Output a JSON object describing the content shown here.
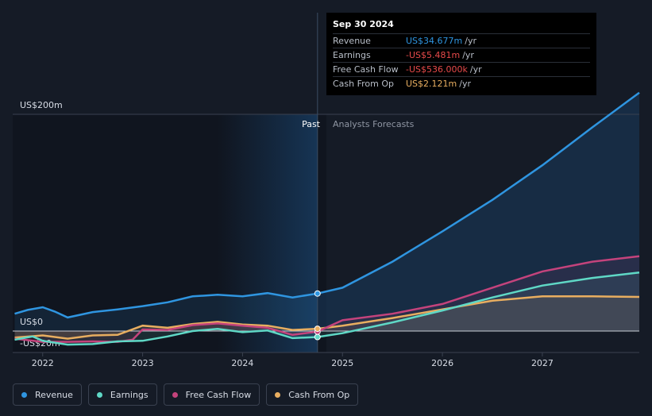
{
  "colors": {
    "revenue": "#2f95e0",
    "earnings": "#5fd8c6",
    "fcf": "#c4437c",
    "cfo": "#e8ae60",
    "negative": "#e84a4a"
  },
  "tooltip": {
    "date": "Sep 30 2024",
    "rows": [
      {
        "label": "Revenue",
        "value": "US$34.677m",
        "unit": "/yr",
        "color": "#2f95e0"
      },
      {
        "label": "Earnings",
        "value": "-US$5.481m",
        "unit": "/yr",
        "color": "#e84a4a"
      },
      {
        "label": "Free Cash Flow",
        "value": "-US$536.000k",
        "unit": "/yr",
        "color": "#e84a4a"
      },
      {
        "label": "Cash From Op",
        "value": "US$2.121m",
        "unit": "/yr",
        "color": "#e8ae60"
      }
    ]
  },
  "legend": [
    {
      "label": "Revenue",
      "color": "#2f95e0",
      "icon": "revenue-dot-icon"
    },
    {
      "label": "Earnings",
      "color": "#5fd8c6",
      "icon": "earnings-dot-icon"
    },
    {
      "label": "Free Cash Flow",
      "color": "#c4437c",
      "icon": "fcf-dot-icon"
    },
    {
      "label": "Cash From Op",
      "color": "#e8ae60",
      "icon": "cfo-dot-icon"
    }
  ],
  "chart_data": {
    "type": "line",
    "y_labels": {
      "top": "US$200m",
      "zero": "US$0",
      "bottom": "-US$20m"
    },
    "ylim": [
      -20,
      200
    ],
    "xlim": [
      2021.7,
      2027.97
    ],
    "x_ticks": [
      "2022",
      "2023",
      "2024",
      "2025",
      "2026",
      "2027"
    ],
    "x_tick_values": [
      2022,
      2023,
      2024,
      2025,
      2026,
      2027
    ],
    "past_label": "Past",
    "forecast_label": "Analysts Forecasts",
    "split_x": 2024.75,
    "highlight_start_x": 2023.75,
    "legend_position": "bottom-left",
    "series": [
      {
        "name": "Revenue",
        "key": "revenue",
        "points": [
          [
            2021.72,
            16
          ],
          [
            2021.85,
            19.5
          ],
          [
            2022.0,
            22
          ],
          [
            2022.12,
            18
          ],
          [
            2022.25,
            12.5
          ],
          [
            2022.5,
            17.5
          ],
          [
            2022.75,
            20
          ],
          [
            2023.0,
            23
          ],
          [
            2023.25,
            26.5
          ],
          [
            2023.5,
            32
          ],
          [
            2023.75,
            33.5
          ],
          [
            2024.0,
            32
          ],
          [
            2024.25,
            35
          ],
          [
            2024.5,
            31
          ],
          [
            2024.75,
            34.677
          ]
        ],
        "forecast": [
          [
            2024.75,
            34.677
          ],
          [
            2025.0,
            40
          ],
          [
            2025.5,
            64
          ],
          [
            2026.0,
            92
          ],
          [
            2026.5,
            121
          ],
          [
            2027.0,
            153
          ],
          [
            2027.5,
            188
          ],
          [
            2027.97,
            220
          ]
        ]
      },
      {
        "name": "Earnings",
        "key": "earnings",
        "points": [
          [
            2021.72,
            -8
          ],
          [
            2021.9,
            -5
          ],
          [
            2022.0,
            -9
          ],
          [
            2022.25,
            -12.5
          ],
          [
            2022.5,
            -12
          ],
          [
            2022.75,
            -9.5
          ],
          [
            2023.0,
            -9
          ],
          [
            2023.25,
            -5
          ],
          [
            2023.5,
            0
          ],
          [
            2023.75,
            2
          ],
          [
            2024.0,
            -1
          ],
          [
            2024.25,
            0.5
          ],
          [
            2024.5,
            -6.5
          ],
          [
            2024.75,
            -5.481
          ]
        ],
        "forecast": [
          [
            2024.75,
            -5.481
          ],
          [
            2025.0,
            -2
          ],
          [
            2025.5,
            8
          ],
          [
            2026.0,
            19
          ],
          [
            2026.5,
            31
          ],
          [
            2027.0,
            42
          ],
          [
            2027.5,
            49
          ],
          [
            2027.97,
            54
          ]
        ]
      },
      {
        "name": "Free Cash Flow",
        "key": "fcf",
        "points": [
          [
            2021.72,
            -7
          ],
          [
            2022.0,
            -10
          ],
          [
            2022.25,
            -10
          ],
          [
            2022.5,
            -9.5
          ],
          [
            2022.75,
            -10
          ],
          [
            2022.9,
            -8
          ],
          [
            2023.0,
            1.5
          ],
          [
            2023.25,
            1
          ],
          [
            2023.5,
            5.5
          ],
          [
            2023.75,
            7
          ],
          [
            2024.0,
            5
          ],
          [
            2024.25,
            3
          ],
          [
            2024.5,
            -3.5
          ],
          [
            2024.75,
            -0.536
          ]
        ],
        "forecast": [
          [
            2024.75,
            -0.536
          ],
          [
            2025.0,
            10
          ],
          [
            2025.5,
            16
          ],
          [
            2026.0,
            25
          ],
          [
            2026.5,
            40
          ],
          [
            2027.0,
            55
          ],
          [
            2027.5,
            64
          ],
          [
            2027.97,
            69
          ]
        ]
      },
      {
        "name": "Cash From Op",
        "key": "cfo",
        "points": [
          [
            2021.72,
            -6
          ],
          [
            2022.0,
            -4
          ],
          [
            2022.25,
            -7
          ],
          [
            2022.5,
            -4
          ],
          [
            2022.75,
            -3.5
          ],
          [
            2023.0,
            5
          ],
          [
            2023.25,
            3
          ],
          [
            2023.5,
            6.5
          ],
          [
            2023.75,
            8.5
          ],
          [
            2024.0,
            6
          ],
          [
            2024.25,
            5
          ],
          [
            2024.5,
            1
          ],
          [
            2024.75,
            2.121
          ]
        ],
        "forecast": [
          [
            2024.75,
            2.121
          ],
          [
            2025.0,
            5
          ],
          [
            2025.5,
            12
          ],
          [
            2026.0,
            20
          ],
          [
            2026.5,
            28
          ],
          [
            2027.0,
            32
          ],
          [
            2027.5,
            32
          ],
          [
            2027.97,
            31.5
          ]
        ]
      }
    ]
  }
}
